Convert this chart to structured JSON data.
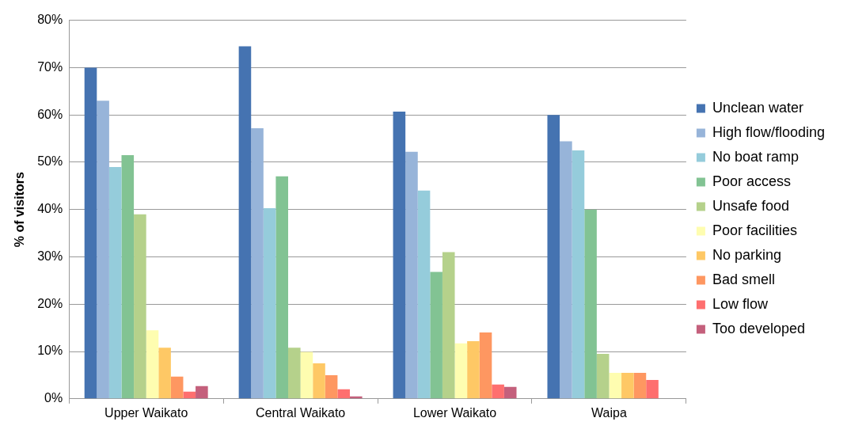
{
  "chart_data": {
    "type": "bar",
    "ylabel": "% of visitors",
    "categories": [
      "Upper Waikato",
      "Central Waikato",
      "Lower Waikato",
      "Waipa"
    ],
    "series": [
      {
        "name": "Unclean water",
        "color": "#4573b1",
        "values": [
          70,
          74.5,
          60.7,
          60
        ]
      },
      {
        "name": "High flow/flooding",
        "color": "#97b4d9",
        "values": [
          63,
          57.2,
          52.2,
          54.4
        ]
      },
      {
        "name": "No boat ramp",
        "color": "#95ccdb",
        "values": [
          49,
          40.3,
          44,
          52.5
        ]
      },
      {
        "name": "Poor access",
        "color": "#82c393",
        "values": [
          51.5,
          47,
          26.8,
          40
        ]
      },
      {
        "name": "Unsafe food",
        "color": "#b5d18b",
        "values": [
          39,
          10.8,
          31,
          9.5
        ]
      },
      {
        "name": "Poor facilities",
        "color": "#fefdb0",
        "values": [
          14.5,
          9.9,
          11.7,
          5.5
        ]
      },
      {
        "name": "No parking",
        "color": "#fec865",
        "values": [
          10.8,
          7.5,
          12.2,
          5.5
        ]
      },
      {
        "name": "Bad smell",
        "color": "#fe9761",
        "values": [
          4.7,
          5,
          14,
          5.5
        ]
      },
      {
        "name": "Low flow",
        "color": "#fe6f6f",
        "values": [
          1.5,
          2,
          3,
          4
        ]
      },
      {
        "name": "Too developed",
        "color": "#c4607c",
        "values": [
          2.7,
          0.5,
          2.5,
          null
        ]
      }
    ],
    "ylim": [
      0,
      80
    ],
    "yticks": [
      {
        "value": 0,
        "label": "0%"
      },
      {
        "value": 10,
        "label": "10%"
      },
      {
        "value": 20,
        "label": "20%"
      },
      {
        "value": 30,
        "label": "30%"
      },
      {
        "value": 40,
        "label": "40%"
      },
      {
        "value": 50,
        "label": "50%"
      },
      {
        "value": 60,
        "label": "60%"
      },
      {
        "value": 70,
        "label": "70%"
      },
      {
        "value": 80,
        "label": "80%"
      }
    ],
    "grid": "y",
    "legend": "right"
  }
}
